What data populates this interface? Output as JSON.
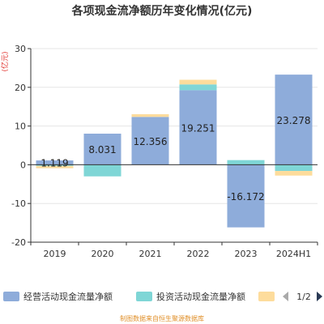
{
  "chart_data": {
    "type": "bar",
    "title": "各项现金流净额历年变化情况(亿元)",
    "ylabel": "(亿元)",
    "categories": [
      "2019",
      "2020",
      "2021",
      "2022",
      "2023",
      "2024H1"
    ],
    "ylim": [
      -20,
      30
    ],
    "yticks": [
      -20,
      -10,
      0,
      10,
      20,
      30
    ],
    "grid": true,
    "stacked": true,
    "series": [
      {
        "name": "经营活动现金流量净额",
        "color": "#8eacda",
        "values": [
          1.119,
          8.031,
          12.356,
          19.251,
          -16.172,
          23.278
        ],
        "labels": [
          "1.119",
          "8.031",
          "12.356",
          "19.251",
          "-16.172",
          "23.278"
        ]
      },
      {
        "name": "投资活动现金流量净额",
        "color": "#7fd6d6",
        "values": [
          -0.3,
          -3.0,
          0.0,
          1.5,
          1.2,
          -1.6
        ]
      },
      {
        "name": "",
        "color": "#fddc9c",
        "values": [
          -0.6,
          0.0,
          0.7,
          1.2,
          0.0,
          -1.2
        ]
      }
    ],
    "legend": {
      "position": "bottom",
      "page": "1/2"
    },
    "source": "制图数据来自恒生聚源数据库"
  },
  "colors": {
    "axis": "#333333",
    "grid": "#e6e6e6",
    "ylabel": "#e0302b",
    "source": "#e0902b",
    "nav_disabled": "#aaaaaa",
    "nav_active": "#2a3a55"
  }
}
